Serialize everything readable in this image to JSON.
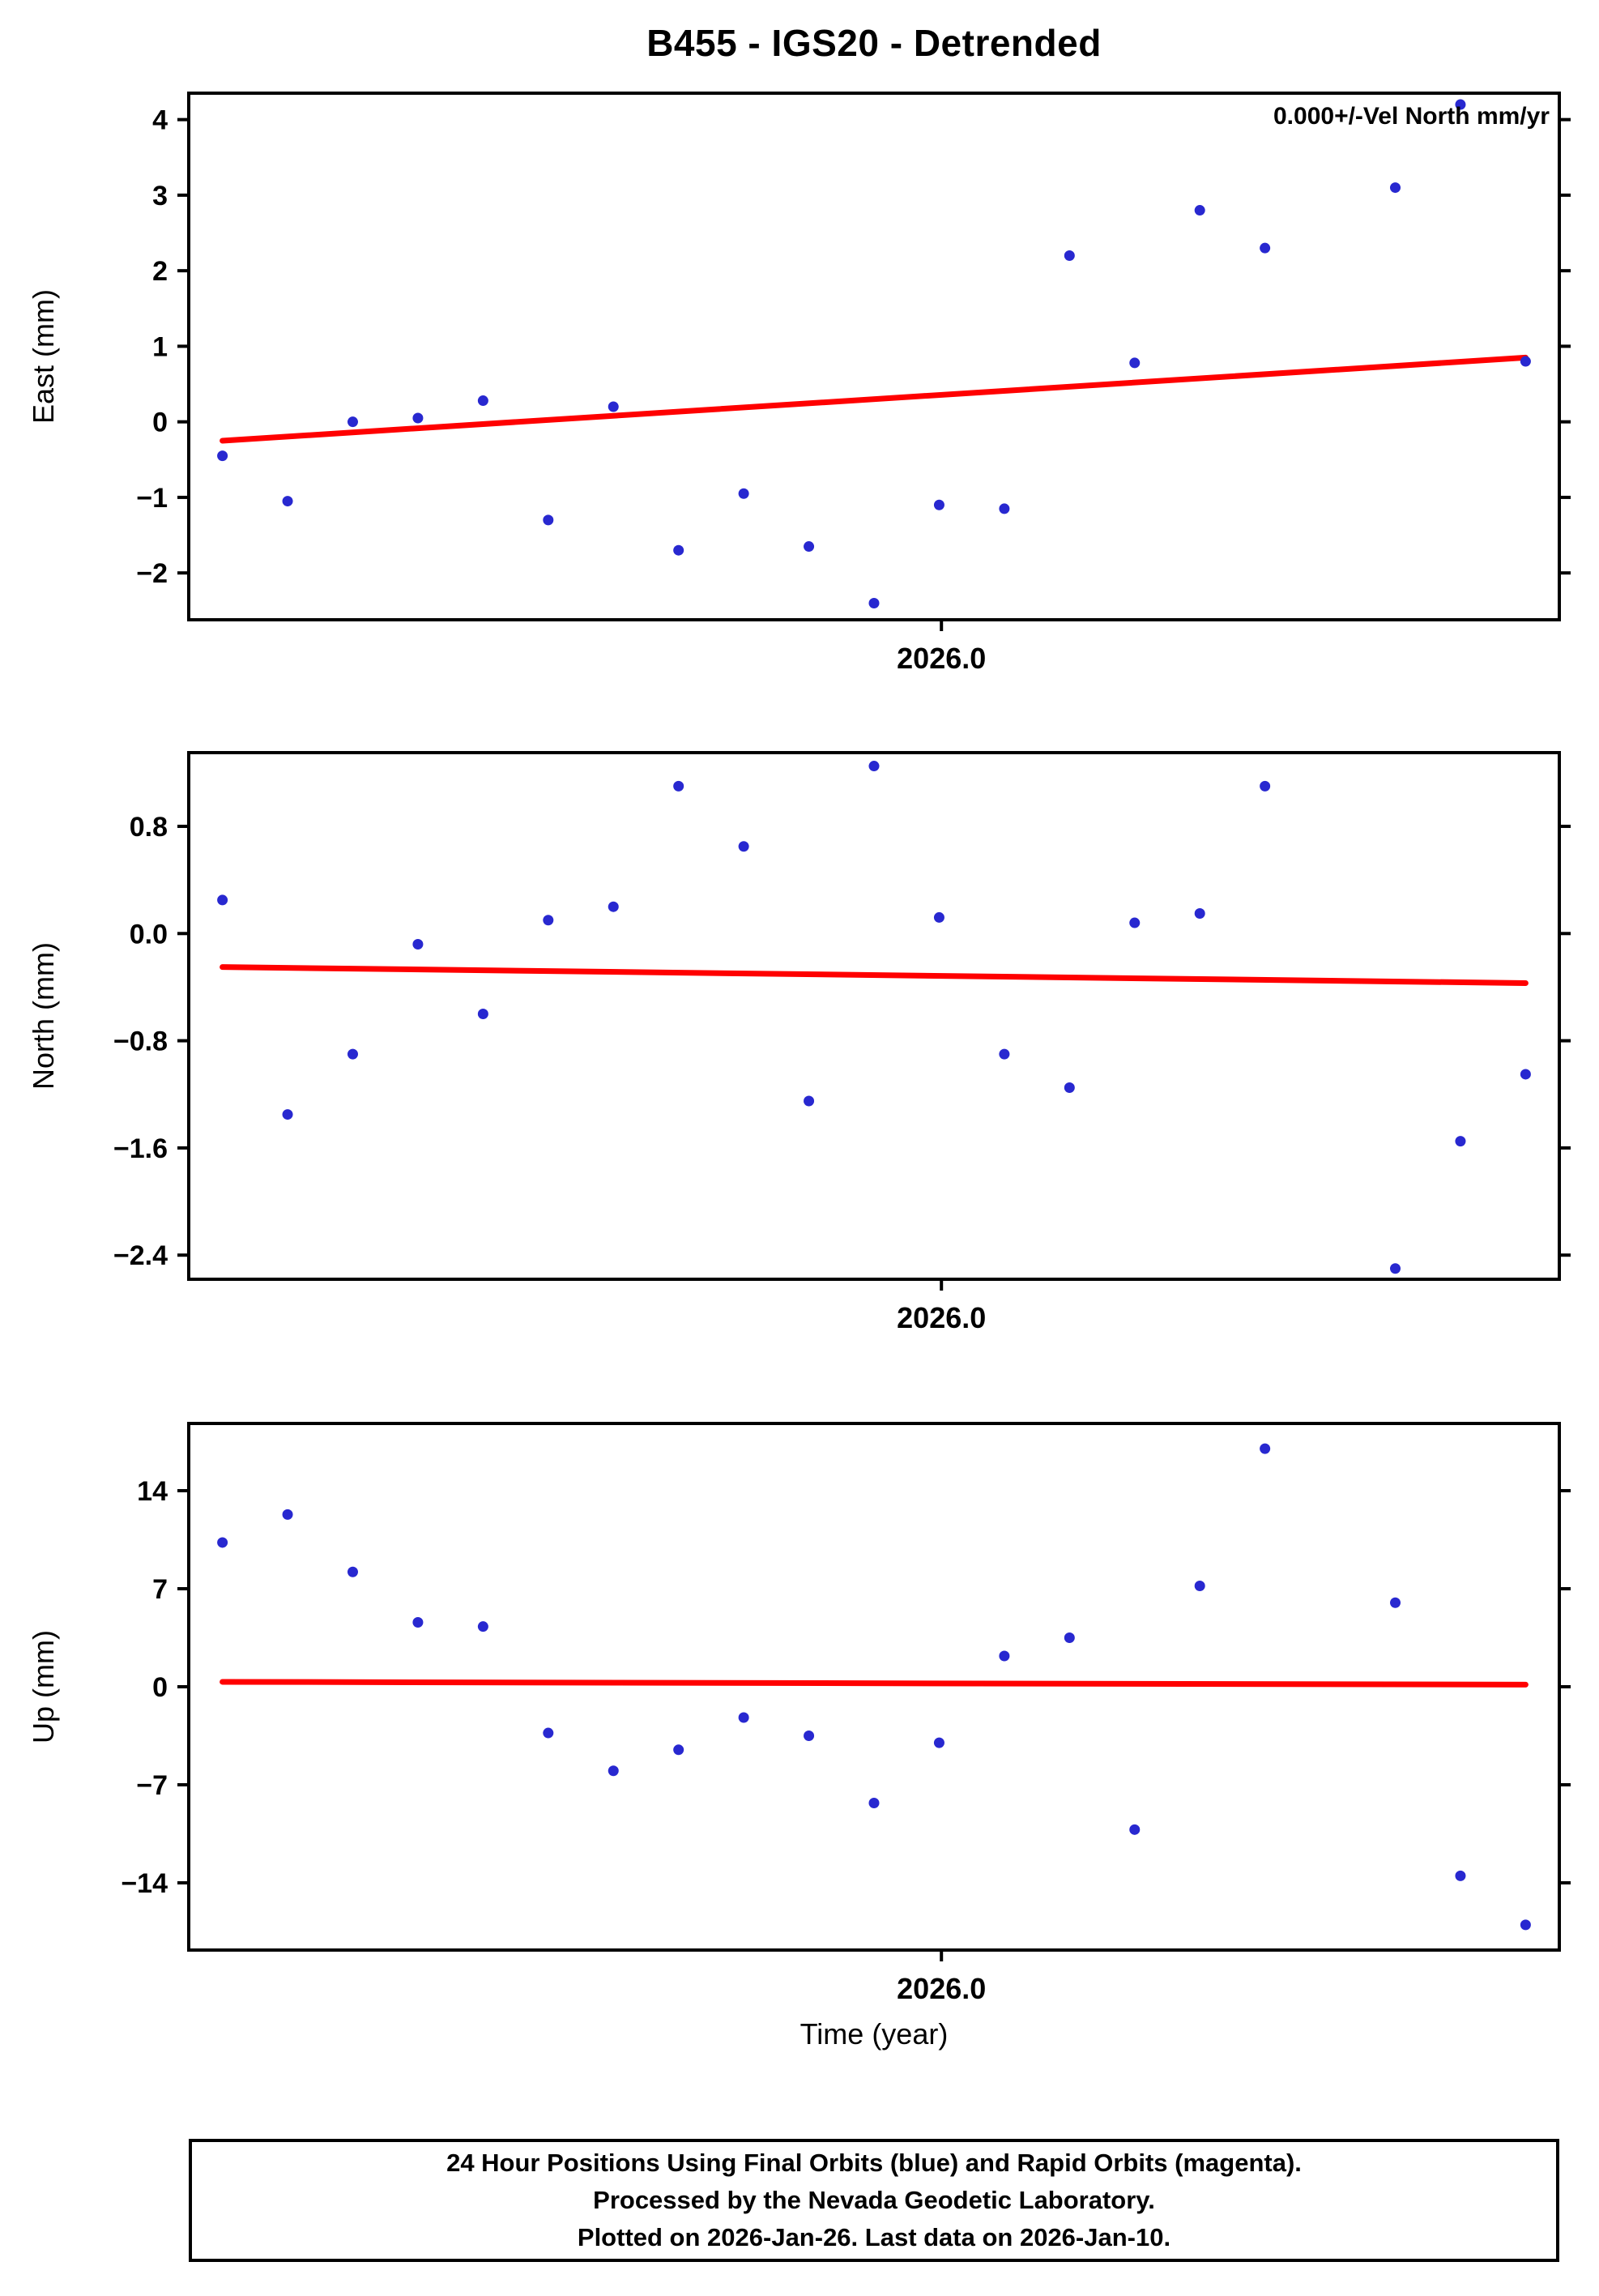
{
  "title": "B455 - IGS20 - Detrended",
  "time_axis_label": "Time (year)",
  "caption": {
    "line1": "24 Hour Positions Using Final Orbits (blue) and Rapid Orbits (magenta).",
    "line2": "Processed by the Nevada Geodetic Laboratory.",
    "line3": "Plotted on 2026-Jan-26. Last data on 2026-Jan-10."
  },
  "style": {
    "point_color": "#2828d0",
    "trend_color": "#ff0000",
    "axis_color": "#000000",
    "background": "#ffffff"
  },
  "chart_data": [
    {
      "type": "scatter",
      "ylabel": "East (mm)",
      "annotation": "0.000+/-Vel North mm/yr",
      "xlim": [
        2025.9665,
        2026.0275
      ],
      "ylim": [
        -2.62,
        4.35
      ],
      "xtick": {
        "value": 2026.0,
        "label": "2026.0"
      },
      "yticks": [
        {
          "v": 4,
          "label": "4"
        },
        {
          "v": 3,
          "label": "3"
        },
        {
          "v": 2,
          "label": "2"
        },
        {
          "v": 1,
          "label": "1"
        },
        {
          "v": 0,
          "label": "0"
        },
        {
          "v": -1,
          "label": "−1"
        },
        {
          "v": -2,
          "label": "−2"
        }
      ],
      "x": [
        2025.968,
        2025.9709,
        2025.9738,
        2025.9767,
        2025.9796,
        2025.9825,
        2025.9854,
        2025.9883,
        2025.9912,
        2025.9941,
        2025.997,
        2025.9999,
        2026.0028,
        2026.0057,
        2026.0086,
        2026.0115,
        2026.0144,
        2026.0202,
        2026.0231,
        2026.026
      ],
      "y": [
        -0.45,
        -1.05,
        0.0,
        0.05,
        0.28,
        -1.3,
        0.2,
        -1.7,
        -0.95,
        -1.65,
        -2.4,
        -1.1,
        -1.15,
        2.2,
        0.78,
        2.8,
        2.3,
        3.1,
        4.2,
        0.8
      ],
      "trend": {
        "x": [
          2025.968,
          2026.026
        ],
        "y": [
          -0.25,
          0.85
        ]
      }
    },
    {
      "type": "scatter",
      "ylabel": "North (mm)",
      "annotation": "",
      "xlim": [
        2025.9665,
        2026.0275
      ],
      "ylim": [
        -2.58,
        1.35
      ],
      "xtick": {
        "value": 2026.0,
        "label": "2026.0"
      },
      "yticks": [
        {
          "v": 0.8,
          "label": "0.8"
        },
        {
          "v": 0.0,
          "label": "0.0"
        },
        {
          "v": -0.8,
          "label": "−0.8"
        },
        {
          "v": -1.6,
          "label": "−1.6"
        },
        {
          "v": -2.4,
          "label": "−2.4"
        }
      ],
      "x": [
        2025.968,
        2025.9709,
        2025.9738,
        2025.9767,
        2025.9796,
        2025.9825,
        2025.9854,
        2025.9883,
        2025.9912,
        2025.9941,
        2025.997,
        2025.9999,
        2026.0028,
        2026.0057,
        2026.0086,
        2026.0115,
        2026.0144,
        2026.0202,
        2026.0231,
        2026.026
      ],
      "y": [
        0.25,
        -1.35,
        -0.9,
        -0.08,
        -0.6,
        0.1,
        0.2,
        1.1,
        0.65,
        -1.25,
        1.25,
        0.12,
        -0.9,
        -1.15,
        0.08,
        0.15,
        1.1,
        -2.5,
        -1.55,
        -1.05
      ],
      "trend": {
        "x": [
          2025.968,
          2026.026
        ],
        "y": [
          -0.25,
          -0.37
        ]
      }
    },
    {
      "type": "scatter",
      "ylabel": "Up (mm)",
      "annotation": "",
      "xlim": [
        2025.9665,
        2026.0275
      ],
      "ylim": [
        -18.8,
        18.8
      ],
      "xtick": {
        "value": 2026.0,
        "label": "2026.0"
      },
      "yticks": [
        {
          "v": 14,
          "label": "14"
        },
        {
          "v": 7,
          "label": "7"
        },
        {
          "v": 0,
          "label": "0"
        },
        {
          "v": -7,
          "label": "−7"
        },
        {
          "v": -14,
          "label": "−14"
        }
      ],
      "x": [
        2025.968,
        2025.9709,
        2025.9738,
        2025.9767,
        2025.9796,
        2025.9825,
        2025.9854,
        2025.9883,
        2025.9912,
        2025.9941,
        2025.997,
        2025.9999,
        2026.0028,
        2026.0057,
        2026.0086,
        2026.0115,
        2026.0144,
        2026.0202,
        2026.0231,
        2026.026
      ],
      "y": [
        10.3,
        12.3,
        8.2,
        4.6,
        4.3,
        -3.3,
        -6.0,
        -4.5,
        -2.2,
        -3.5,
        -8.3,
        -4.0,
        2.2,
        3.5,
        -10.2,
        7.2,
        17.0,
        6.0,
        -13.5,
        -17.0
      ],
      "trend": {
        "x": [
          2025.968,
          2026.026
        ],
        "y": [
          0.35,
          0.15
        ]
      }
    }
  ]
}
